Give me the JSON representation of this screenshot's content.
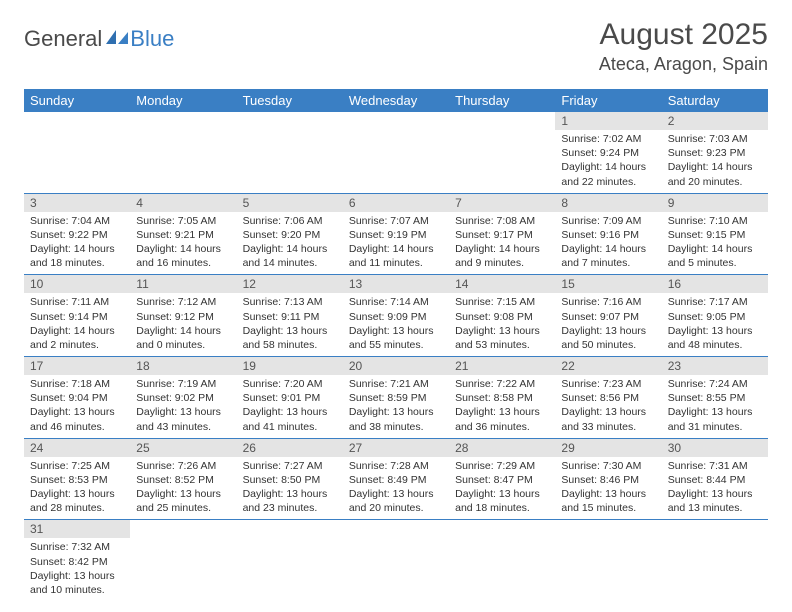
{
  "brand": {
    "part1": "General",
    "part2": "Blue"
  },
  "title": "August 2025",
  "location": "Ateca, Aragon, Spain",
  "colors": {
    "header_bg": "#3a7fc4",
    "header_text": "#ffffff",
    "daynum_bg": "#e4e4e4",
    "border": "#3a7fc4",
    "text": "#333333",
    "logo_gray": "#4a4a4a",
    "logo_blue": "#3a7fc4"
  },
  "typography": {
    "title_fontsize": 30,
    "location_fontsize": 18,
    "dayheader_fontsize": 13,
    "daynum_fontsize": 12,
    "body_fontsize": 10.5
  },
  "dayHeaders": [
    "Sunday",
    "Monday",
    "Tuesday",
    "Wednesday",
    "Thursday",
    "Friday",
    "Saturday"
  ],
  "weeks": [
    [
      null,
      null,
      null,
      null,
      null,
      {
        "n": "1",
        "sr": "7:02 AM",
        "ss": "9:24 PM",
        "dl": "14 hours and 22 minutes."
      },
      {
        "n": "2",
        "sr": "7:03 AM",
        "ss": "9:23 PM",
        "dl": "14 hours and 20 minutes."
      }
    ],
    [
      {
        "n": "3",
        "sr": "7:04 AM",
        "ss": "9:22 PM",
        "dl": "14 hours and 18 minutes."
      },
      {
        "n": "4",
        "sr": "7:05 AM",
        "ss": "9:21 PM",
        "dl": "14 hours and 16 minutes."
      },
      {
        "n": "5",
        "sr": "7:06 AM",
        "ss": "9:20 PM",
        "dl": "14 hours and 14 minutes."
      },
      {
        "n": "6",
        "sr": "7:07 AM",
        "ss": "9:19 PM",
        "dl": "14 hours and 11 minutes."
      },
      {
        "n": "7",
        "sr": "7:08 AM",
        "ss": "9:17 PM",
        "dl": "14 hours and 9 minutes."
      },
      {
        "n": "8",
        "sr": "7:09 AM",
        "ss": "9:16 PM",
        "dl": "14 hours and 7 minutes."
      },
      {
        "n": "9",
        "sr": "7:10 AM",
        "ss": "9:15 PM",
        "dl": "14 hours and 5 minutes."
      }
    ],
    [
      {
        "n": "10",
        "sr": "7:11 AM",
        "ss": "9:14 PM",
        "dl": "14 hours and 2 minutes."
      },
      {
        "n": "11",
        "sr": "7:12 AM",
        "ss": "9:12 PM",
        "dl": "14 hours and 0 minutes."
      },
      {
        "n": "12",
        "sr": "7:13 AM",
        "ss": "9:11 PM",
        "dl": "13 hours and 58 minutes."
      },
      {
        "n": "13",
        "sr": "7:14 AM",
        "ss": "9:09 PM",
        "dl": "13 hours and 55 minutes."
      },
      {
        "n": "14",
        "sr": "7:15 AM",
        "ss": "9:08 PM",
        "dl": "13 hours and 53 minutes."
      },
      {
        "n": "15",
        "sr": "7:16 AM",
        "ss": "9:07 PM",
        "dl": "13 hours and 50 minutes."
      },
      {
        "n": "16",
        "sr": "7:17 AM",
        "ss": "9:05 PM",
        "dl": "13 hours and 48 minutes."
      }
    ],
    [
      {
        "n": "17",
        "sr": "7:18 AM",
        "ss": "9:04 PM",
        "dl": "13 hours and 46 minutes."
      },
      {
        "n": "18",
        "sr": "7:19 AM",
        "ss": "9:02 PM",
        "dl": "13 hours and 43 minutes."
      },
      {
        "n": "19",
        "sr": "7:20 AM",
        "ss": "9:01 PM",
        "dl": "13 hours and 41 minutes."
      },
      {
        "n": "20",
        "sr": "7:21 AM",
        "ss": "8:59 PM",
        "dl": "13 hours and 38 minutes."
      },
      {
        "n": "21",
        "sr": "7:22 AM",
        "ss": "8:58 PM",
        "dl": "13 hours and 36 minutes."
      },
      {
        "n": "22",
        "sr": "7:23 AM",
        "ss": "8:56 PM",
        "dl": "13 hours and 33 minutes."
      },
      {
        "n": "23",
        "sr": "7:24 AM",
        "ss": "8:55 PM",
        "dl": "13 hours and 31 minutes."
      }
    ],
    [
      {
        "n": "24",
        "sr": "7:25 AM",
        "ss": "8:53 PM",
        "dl": "13 hours and 28 minutes."
      },
      {
        "n": "25",
        "sr": "7:26 AM",
        "ss": "8:52 PM",
        "dl": "13 hours and 25 minutes."
      },
      {
        "n": "26",
        "sr": "7:27 AM",
        "ss": "8:50 PM",
        "dl": "13 hours and 23 minutes."
      },
      {
        "n": "27",
        "sr": "7:28 AM",
        "ss": "8:49 PM",
        "dl": "13 hours and 20 minutes."
      },
      {
        "n": "28",
        "sr": "7:29 AM",
        "ss": "8:47 PM",
        "dl": "13 hours and 18 minutes."
      },
      {
        "n": "29",
        "sr": "7:30 AM",
        "ss": "8:46 PM",
        "dl": "13 hours and 15 minutes."
      },
      {
        "n": "30",
        "sr": "7:31 AM",
        "ss": "8:44 PM",
        "dl": "13 hours and 13 minutes."
      }
    ],
    [
      {
        "n": "31",
        "sr": "7:32 AM",
        "ss": "8:42 PM",
        "dl": "13 hours and 10 minutes."
      },
      null,
      null,
      null,
      null,
      null,
      null
    ]
  ],
  "labels": {
    "sunrise": "Sunrise:",
    "sunset": "Sunset:",
    "daylight": "Daylight:"
  }
}
